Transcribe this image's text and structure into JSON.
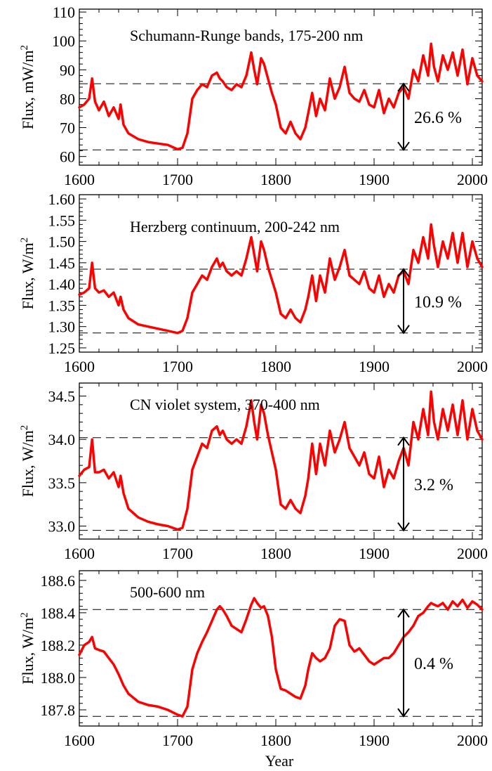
{
  "colors": {
    "series": "#ff0000",
    "axis": "#000000",
    "reference": "#000000"
  },
  "xlabel": "Year",
  "chart_data": [
    {
      "type": "line",
      "title": "Schumann-Runge bands, 175-200 nm",
      "ylabel": "Flux, mW/m",
      "ylabel_sup": "2",
      "xlim": [
        1600,
        2010
      ],
      "ylim": [
        57,
        111
      ],
      "xticks": [
        1600,
        1700,
        1800,
        1900,
        2000
      ],
      "yticks": [
        60,
        70,
        80,
        90,
        100,
        110
      ],
      "ytick_labels": [
        "60",
        "70",
        "80",
        "90",
        "100",
        "110"
      ],
      "reference_lines": [
        85.2,
        62.3
      ],
      "arrow_year": 1930,
      "annotation": "26.6 %",
      "series": [
        {
          "x": [
            1600,
            1605,
            1610,
            1613,
            1616,
            1620,
            1625,
            1630,
            1635,
            1640,
            1642,
            1645,
            1650,
            1660,
            1670,
            1680,
            1690,
            1700,
            1705,
            1710,
            1715,
            1720,
            1725,
            1730,
            1735,
            1740,
            1743,
            1746,
            1750,
            1755,
            1760,
            1765,
            1770,
            1775,
            1778,
            1781,
            1785,
            1788,
            1792,
            1796,
            1800,
            1805,
            1810,
            1815,
            1820,
            1825,
            1830,
            1833,
            1837,
            1841,
            1845,
            1850,
            1855,
            1860,
            1865,
            1870,
            1875,
            1880,
            1885,
            1890,
            1895,
            1900,
            1905,
            1910,
            1915,
            1920,
            1925,
            1930,
            1935,
            1940,
            1945,
            1950,
            1955,
            1958,
            1961,
            1965,
            1970,
            1975,
            1980,
            1985,
            1990,
            1995,
            2000,
            2005,
            2010
          ],
          "y": [
            77,
            78,
            80,
            87,
            79,
            76,
            79,
            74,
            77,
            73,
            78,
            71,
            68,
            66,
            65,
            64.5,
            64,
            62.5,
            63,
            68,
            80,
            83,
            85,
            84,
            88,
            89,
            87,
            86,
            84,
            83,
            85,
            84,
            88,
            96,
            90,
            85,
            94,
            92,
            87,
            82,
            78,
            70,
            68,
            72,
            68,
            66,
            70,
            75,
            82,
            74,
            80,
            76,
            87,
            80,
            84,
            91,
            82,
            80,
            79,
            83,
            78,
            77,
            83,
            75,
            80,
            77,
            82,
            84,
            80,
            90,
            86,
            95,
            88,
            99,
            91,
            86,
            95,
            90,
            96,
            88,
            97,
            85,
            94,
            88,
            86
          ]
        }
      ]
    },
    {
      "type": "line",
      "title": "Herzberg continuum, 200-242 nm",
      "ylabel": "Flux, W/m",
      "ylabel_sup": "2",
      "xlim": [
        1600,
        2010
      ],
      "ylim": [
        1.24,
        1.61
      ],
      "xticks": [
        1600,
        1700,
        1800,
        1900,
        2000
      ],
      "yticks": [
        1.25,
        1.3,
        1.35,
        1.4,
        1.45,
        1.5,
        1.55,
        1.6
      ],
      "ytick_labels": [
        "1.25",
        "1.30",
        "1.35",
        "1.40",
        "1.45",
        "1.50",
        "1.55",
        "1.60"
      ],
      "reference_lines": [
        1.435,
        1.285
      ],
      "arrow_year": 1930,
      "annotation": "10.9 %",
      "series": [
        {
          "x": [
            1600,
            1605,
            1610,
            1613,
            1616,
            1620,
            1625,
            1630,
            1635,
            1640,
            1642,
            1645,
            1650,
            1660,
            1670,
            1680,
            1690,
            1700,
            1705,
            1710,
            1715,
            1720,
            1725,
            1730,
            1735,
            1740,
            1743,
            1746,
            1750,
            1755,
            1760,
            1765,
            1770,
            1775,
            1778,
            1781,
            1785,
            1788,
            1792,
            1796,
            1800,
            1805,
            1810,
            1815,
            1820,
            1825,
            1830,
            1833,
            1837,
            1841,
            1845,
            1850,
            1855,
            1860,
            1865,
            1870,
            1875,
            1880,
            1885,
            1890,
            1895,
            1900,
            1905,
            1910,
            1915,
            1920,
            1925,
            1930,
            1935,
            1940,
            1945,
            1950,
            1955,
            1958,
            1961,
            1965,
            1970,
            1975,
            1980,
            1985,
            1990,
            1995,
            2000,
            2005,
            2010
          ],
          "y": [
            1.375,
            1.38,
            1.39,
            1.45,
            1.39,
            1.38,
            1.385,
            1.37,
            1.38,
            1.35,
            1.37,
            1.34,
            1.32,
            1.305,
            1.3,
            1.295,
            1.29,
            1.285,
            1.29,
            1.32,
            1.38,
            1.4,
            1.42,
            1.41,
            1.44,
            1.46,
            1.44,
            1.45,
            1.43,
            1.42,
            1.43,
            1.42,
            1.46,
            1.51,
            1.47,
            1.43,
            1.5,
            1.48,
            1.44,
            1.41,
            1.38,
            1.33,
            1.32,
            1.34,
            1.32,
            1.31,
            1.34,
            1.37,
            1.42,
            1.36,
            1.42,
            1.38,
            1.46,
            1.41,
            1.44,
            1.48,
            1.42,
            1.41,
            1.4,
            1.43,
            1.39,
            1.38,
            1.42,
            1.37,
            1.4,
            1.38,
            1.42,
            1.43,
            1.4,
            1.48,
            1.45,
            1.51,
            1.46,
            1.54,
            1.49,
            1.44,
            1.5,
            1.46,
            1.52,
            1.45,
            1.52,
            1.44,
            1.5,
            1.46,
            1.44
          ]
        }
      ]
    },
    {
      "type": "line",
      "title": "CN violet system, 370-400 nm",
      "ylabel": "Flux, W/m",
      "ylabel_sup": "2",
      "xlim": [
        1600,
        2010
      ],
      "ylim": [
        32.85,
        34.65
      ],
      "xticks": [
        1600,
        1700,
        1800,
        1900,
        2000
      ],
      "yticks": [
        33.0,
        33.5,
        34.0,
        34.5
      ],
      "ytick_labels": [
        "33.0",
        "33.5",
        "34.0",
        "34.5"
      ],
      "reference_lines": [
        34.02,
        32.95
      ],
      "arrow_year": 1930,
      "annotation": "3.2 %",
      "series": [
        {
          "x": [
            1600,
            1605,
            1610,
            1613,
            1616,
            1620,
            1625,
            1630,
            1635,
            1640,
            1642,
            1645,
            1650,
            1660,
            1670,
            1680,
            1690,
            1700,
            1705,
            1710,
            1715,
            1720,
            1725,
            1730,
            1735,
            1740,
            1743,
            1746,
            1750,
            1755,
            1760,
            1765,
            1770,
            1775,
            1778,
            1781,
            1785,
            1788,
            1792,
            1796,
            1800,
            1805,
            1810,
            1815,
            1820,
            1825,
            1830,
            1833,
            1837,
            1841,
            1845,
            1850,
            1855,
            1860,
            1865,
            1870,
            1875,
            1880,
            1885,
            1890,
            1895,
            1900,
            1905,
            1910,
            1915,
            1920,
            1925,
            1930,
            1935,
            1940,
            1945,
            1950,
            1955,
            1958,
            1961,
            1965,
            1970,
            1975,
            1980,
            1985,
            1990,
            1995,
            2000,
            2005,
            2010
          ],
          "y": [
            33.58,
            33.65,
            33.68,
            34.0,
            33.62,
            33.62,
            33.65,
            33.55,
            33.62,
            33.45,
            33.58,
            33.38,
            33.2,
            33.1,
            33.05,
            33.02,
            33.0,
            32.96,
            32.98,
            33.2,
            33.65,
            33.8,
            33.95,
            33.9,
            34.1,
            34.15,
            34.05,
            34.1,
            34.0,
            33.95,
            34.0,
            33.95,
            34.15,
            34.45,
            34.2,
            34.0,
            34.4,
            34.3,
            34.05,
            33.85,
            33.65,
            33.25,
            33.2,
            33.3,
            33.2,
            33.15,
            33.35,
            33.55,
            33.95,
            33.6,
            33.95,
            33.7,
            34.1,
            33.85,
            34.0,
            34.2,
            33.9,
            33.8,
            33.7,
            33.85,
            33.6,
            33.55,
            33.8,
            33.45,
            33.65,
            33.55,
            33.75,
            33.9,
            33.7,
            34.2,
            34.0,
            34.35,
            34.05,
            34.55,
            34.2,
            34.0,
            34.35,
            34.1,
            34.4,
            34.05,
            34.45,
            34.0,
            34.35,
            34.1,
            34.0
          ]
        }
      ]
    },
    {
      "type": "line",
      "title": "500-600 nm",
      "ylabel": "Flux, W/m",
      "ylabel_sup": "2",
      "xlim": [
        1600,
        2010
      ],
      "ylim": [
        187.7,
        188.66
      ],
      "xticks": [
        1600,
        1700,
        1800,
        1900,
        2000
      ],
      "yticks": [
        187.8,
        188.0,
        188.2,
        188.4,
        188.6
      ],
      "ytick_labels": [
        "187.8",
        "188.0",
        "188.2",
        "188.4",
        "188.6"
      ],
      "reference_lines": [
        188.42,
        187.76
      ],
      "arrow_year": 1930,
      "annotation": "0.4 %",
      "series": [
        {
          "x": [
            1600,
            1605,
            1610,
            1613,
            1616,
            1620,
            1625,
            1630,
            1635,
            1640,
            1645,
            1650,
            1660,
            1670,
            1680,
            1690,
            1700,
            1705,
            1710,
            1715,
            1720,
            1725,
            1730,
            1735,
            1740,
            1743,
            1746,
            1750,
            1755,
            1760,
            1765,
            1770,
            1775,
            1778,
            1781,
            1785,
            1788,
            1792,
            1796,
            1800,
            1805,
            1810,
            1815,
            1820,
            1825,
            1830,
            1833,
            1837,
            1841,
            1845,
            1850,
            1855,
            1860,
            1865,
            1870,
            1875,
            1880,
            1885,
            1890,
            1895,
            1900,
            1905,
            1910,
            1915,
            1920,
            1925,
            1930,
            1935,
            1940,
            1945,
            1950,
            1955,
            1958,
            1961,
            1965,
            1970,
            1975,
            1980,
            1985,
            1990,
            1995,
            2000,
            2005,
            2010
          ],
          "y": [
            188.14,
            188.2,
            188.22,
            188.25,
            188.18,
            188.17,
            188.16,
            188.12,
            188.08,
            188.02,
            187.95,
            187.9,
            187.85,
            187.83,
            187.82,
            187.8,
            187.77,
            187.76,
            187.82,
            188.05,
            188.15,
            188.22,
            188.28,
            188.35,
            188.42,
            188.44,
            188.42,
            188.38,
            188.32,
            188.3,
            188.28,
            188.36,
            188.45,
            188.49,
            188.46,
            188.43,
            188.44,
            188.38,
            188.25,
            188.05,
            187.93,
            187.92,
            187.9,
            187.88,
            187.87,
            187.95,
            188.05,
            188.15,
            188.12,
            188.1,
            188.12,
            188.18,
            188.32,
            188.36,
            188.35,
            188.2,
            188.16,
            188.18,
            188.14,
            188.1,
            188.08,
            188.1,
            188.12,
            188.12,
            188.15,
            188.2,
            188.25,
            188.28,
            188.32,
            188.38,
            188.4,
            188.44,
            188.46,
            188.45,
            188.44,
            188.46,
            188.42,
            188.47,
            188.44,
            188.48,
            188.43,
            188.47,
            188.45,
            188.42
          ]
        }
      ]
    }
  ]
}
